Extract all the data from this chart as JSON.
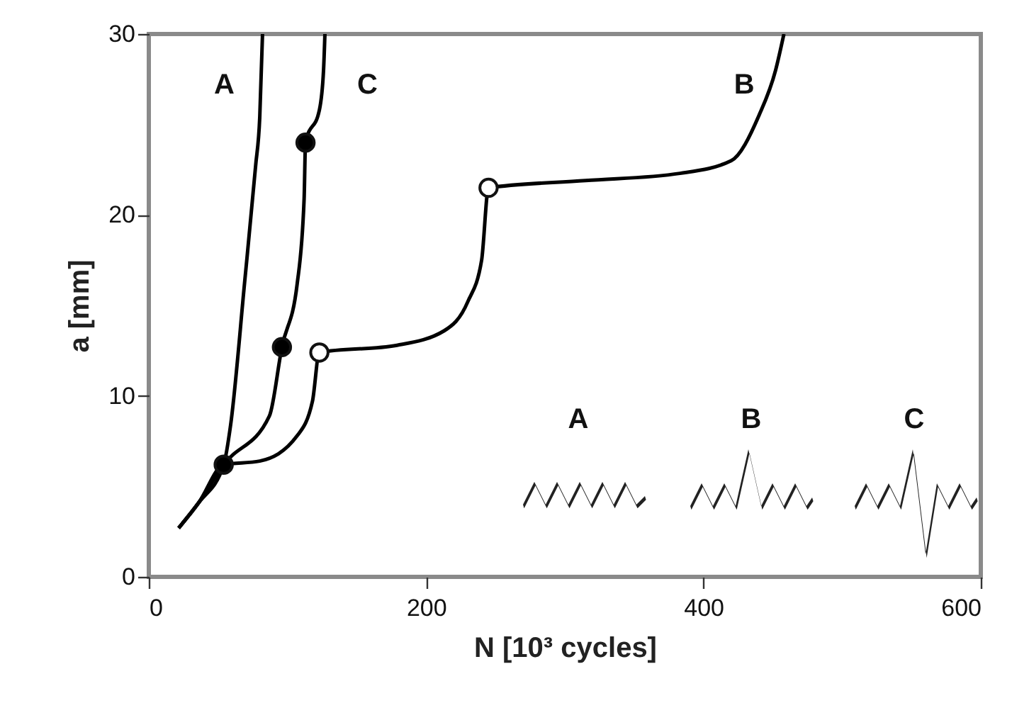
{
  "chart_data": {
    "type": "line",
    "xlabel": "N [10³ cycles]",
    "ylabel": "a [mm]",
    "xlim": [
      0,
      600
    ],
    "xticks": [
      0,
      200,
      400,
      600
    ],
    "ylim": [
      0,
      30
    ],
    "yticks": [
      0,
      10,
      20,
      30
    ],
    "grid": false,
    "legend": false,
    "marker": "none",
    "line_style": "solid",
    "annotations": [
      "A",
      "B",
      "C"
    ],
    "series": [
      {
        "name": "A",
        "color": "#000000",
        "x": [
          21.5,
          36,
          54,
          59,
          69,
          77,
          80,
          82
        ],
        "values": [
          2.7,
          4.1,
          6.2,
          8.4,
          16.2,
          22.7,
          25.4,
          30
        ]
      },
      {
        "name": "B",
        "color": "#000000",
        "x": [
          21.5,
          36,
          54,
          80,
          107,
          118,
          123,
          179,
          213,
          230,
          240,
          245,
          315,
          383,
          420,
          440,
          452,
          458
        ],
        "values": [
          2.7,
          4.1,
          6.2,
          6.4,
          7.8,
          9.7,
          12.4,
          12.8,
          13.6,
          15.2,
          17.5,
          21.5,
          21.9,
          22.3,
          23,
          25.5,
          28,
          30
        ]
      },
      {
        "name": "C",
        "color": "#000000",
        "x": [
          21.5,
          36,
          54,
          87,
          96,
          107,
          112,
          113,
          123,
          126,
          127
        ],
        "values": [
          2.7,
          4.1,
          6.2,
          8.9,
          12.7,
          16.2,
          20.9,
          24.0,
          25.8,
          28.0,
          30
        ]
      },
      {
        "type": "scatter",
        "marker": "circle",
        "color": "#000000",
        "x": [
          54,
          96,
          113
        ],
        "values": [
          6.2,
          12.7,
          24.0
        ]
      },
      {
        "type": "scatter",
        "marker": "circle",
        "color": "#ffffff",
        "x": [
          123,
          245
        ],
        "values": [
          12.4,
          21.5
        ]
      }
    ]
  }
}
